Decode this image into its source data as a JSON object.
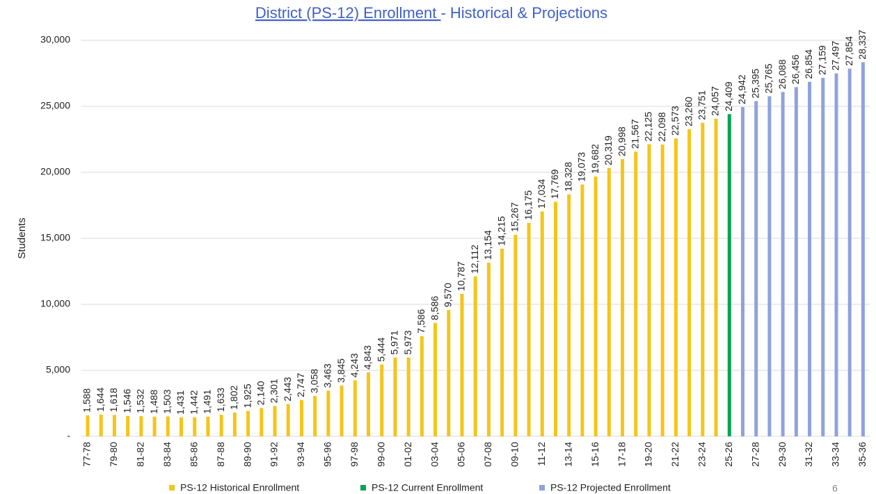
{
  "chart_data": {
    "type": "bar",
    "title": [
      "District (PS-12) Enrollment ",
      "- Historical & Projections"
    ],
    "ylabel": "Students",
    "page_number": "6",
    "categories": [
      "77-78",
      null,
      "79-80",
      null,
      "81-82",
      null,
      "83-84",
      null,
      "85-86",
      null,
      "87-88",
      null,
      "89-90",
      null,
      "91-92",
      null,
      "93-94",
      null,
      "95-96",
      null,
      "97-98",
      null,
      "99-00",
      null,
      "01-02",
      null,
      "03-04",
      null,
      "05-06",
      null,
      "07-08",
      null,
      "09-10",
      null,
      "11-12",
      null,
      "13-14",
      null,
      "15-16",
      null,
      "17-18",
      null,
      "19-20",
      null,
      "21-22",
      null,
      "23-24",
      null,
      "25-26",
      null,
      "27-28",
      null,
      "29-30",
      null,
      "31-32",
      null,
      "33-34",
      null,
      "35-36"
    ],
    "series": [
      {
        "name": "PS-12 Historical Enrollment",
        "color": "#f5c518",
        "values": [
          1588,
          1644,
          1618,
          1546,
          1532,
          1488,
          1503,
          1431,
          1442,
          1491,
          1633,
          1802,
          1925,
          2140,
          2301,
          2443,
          2747,
          3058,
          3463,
          3845,
          4243,
          4843,
          5444,
          5971,
          5973,
          7586,
          8586,
          9570,
          10787,
          12112,
          13154,
          14215,
          15267,
          16175,
          17034,
          17769,
          18328,
          19073,
          19682,
          20319,
          20998,
          21567,
          22125,
          22098,
          22573,
          23260,
          23751,
          24057,
          null,
          null,
          null,
          null,
          null,
          null,
          null,
          null,
          null,
          null,
          null
        ],
        "value_labels": [
          "1,588",
          "1,644",
          "1,618",
          "1,546",
          "1,532",
          "1,488",
          "1,503",
          "1,431",
          "1,442",
          "1,491",
          "1,633",
          "1,802",
          "1,925",
          "2,140",
          "2,301",
          "2,443",
          "2,747",
          "3,058",
          "3,463",
          "3,845",
          "4,243",
          "4,843",
          "5,444",
          "5,971",
          "5,973",
          "7,586",
          "8,586",
          "9,570",
          "10,787",
          "12,112",
          "13,154",
          "14,215",
          "15,267",
          "16,175",
          "17,034",
          "17,769",
          "18,328",
          "19,073",
          "19,682",
          "20,319",
          "20,998",
          "21,567",
          "22,125",
          "22,098",
          "22,573",
          "23,260",
          "23,751",
          "24,057",
          null,
          null,
          null,
          null,
          null,
          null,
          null,
          null,
          null,
          null,
          null
        ]
      },
      {
        "name": "PS-12 Current Enrollment",
        "color": "#00a650",
        "values": [
          null,
          null,
          null,
          null,
          null,
          null,
          null,
          null,
          null,
          null,
          null,
          null,
          null,
          null,
          null,
          null,
          null,
          null,
          null,
          null,
          null,
          null,
          null,
          null,
          null,
          null,
          null,
          null,
          null,
          null,
          null,
          null,
          null,
          null,
          null,
          null,
          null,
          null,
          null,
          null,
          null,
          null,
          null,
          null,
          null,
          null,
          null,
          null,
          24409,
          null,
          null,
          null,
          null,
          null,
          null,
          null,
          null,
          null,
          null
        ],
        "value_labels": [
          null,
          null,
          null,
          null,
          null,
          null,
          null,
          null,
          null,
          null,
          null,
          null,
          null,
          null,
          null,
          null,
          null,
          null,
          null,
          null,
          null,
          null,
          null,
          null,
          null,
          null,
          null,
          null,
          null,
          null,
          null,
          null,
          null,
          null,
          null,
          null,
          null,
          null,
          null,
          null,
          null,
          null,
          null,
          null,
          null,
          null,
          null,
          null,
          "24,409",
          null,
          null,
          null,
          null,
          null,
          null,
          null,
          null,
          null,
          null
        ]
      },
      {
        "name": "PS-12 Projected Enrollment",
        "color": "#8fa2de",
        "values": [
          null,
          null,
          null,
          null,
          null,
          null,
          null,
          null,
          null,
          null,
          null,
          null,
          null,
          null,
          null,
          null,
          null,
          null,
          null,
          null,
          null,
          null,
          null,
          null,
          null,
          null,
          null,
          null,
          null,
          null,
          null,
          null,
          null,
          null,
          null,
          null,
          null,
          null,
          null,
          null,
          null,
          null,
          null,
          null,
          null,
          null,
          null,
          null,
          null,
          24942,
          25395,
          25765,
          26088,
          26456,
          26854,
          27159,
          27497,
          27854,
          28337
        ],
        "value_labels": [
          null,
          null,
          null,
          null,
          null,
          null,
          null,
          null,
          null,
          null,
          null,
          null,
          null,
          null,
          null,
          null,
          null,
          null,
          null,
          null,
          null,
          null,
          null,
          null,
          null,
          null,
          null,
          null,
          null,
          null,
          null,
          null,
          null,
          null,
          null,
          null,
          null,
          null,
          null,
          null,
          null,
          null,
          null,
          null,
          null,
          null,
          null,
          null,
          null,
          "24,942",
          "25,395",
          "25,765",
          "26,088",
          "26,456",
          "26,854",
          "27,159",
          "27,497",
          "27,854",
          "28,337"
        ]
      }
    ],
    "ylim": [
      0,
      30000
    ],
    "yticks": [
      {
        "value": 0,
        "label": "-"
      },
      {
        "value": 5000,
        "label": "5,000"
      },
      {
        "value": 10000,
        "label": "10,000"
      },
      {
        "value": 15000,
        "label": "15,000"
      },
      {
        "value": 20000,
        "label": "20,000"
      },
      {
        "value": 25000,
        "label": "25,000"
      },
      {
        "value": 30000,
        "label": "30,000"
      }
    ],
    "grid": true
  }
}
